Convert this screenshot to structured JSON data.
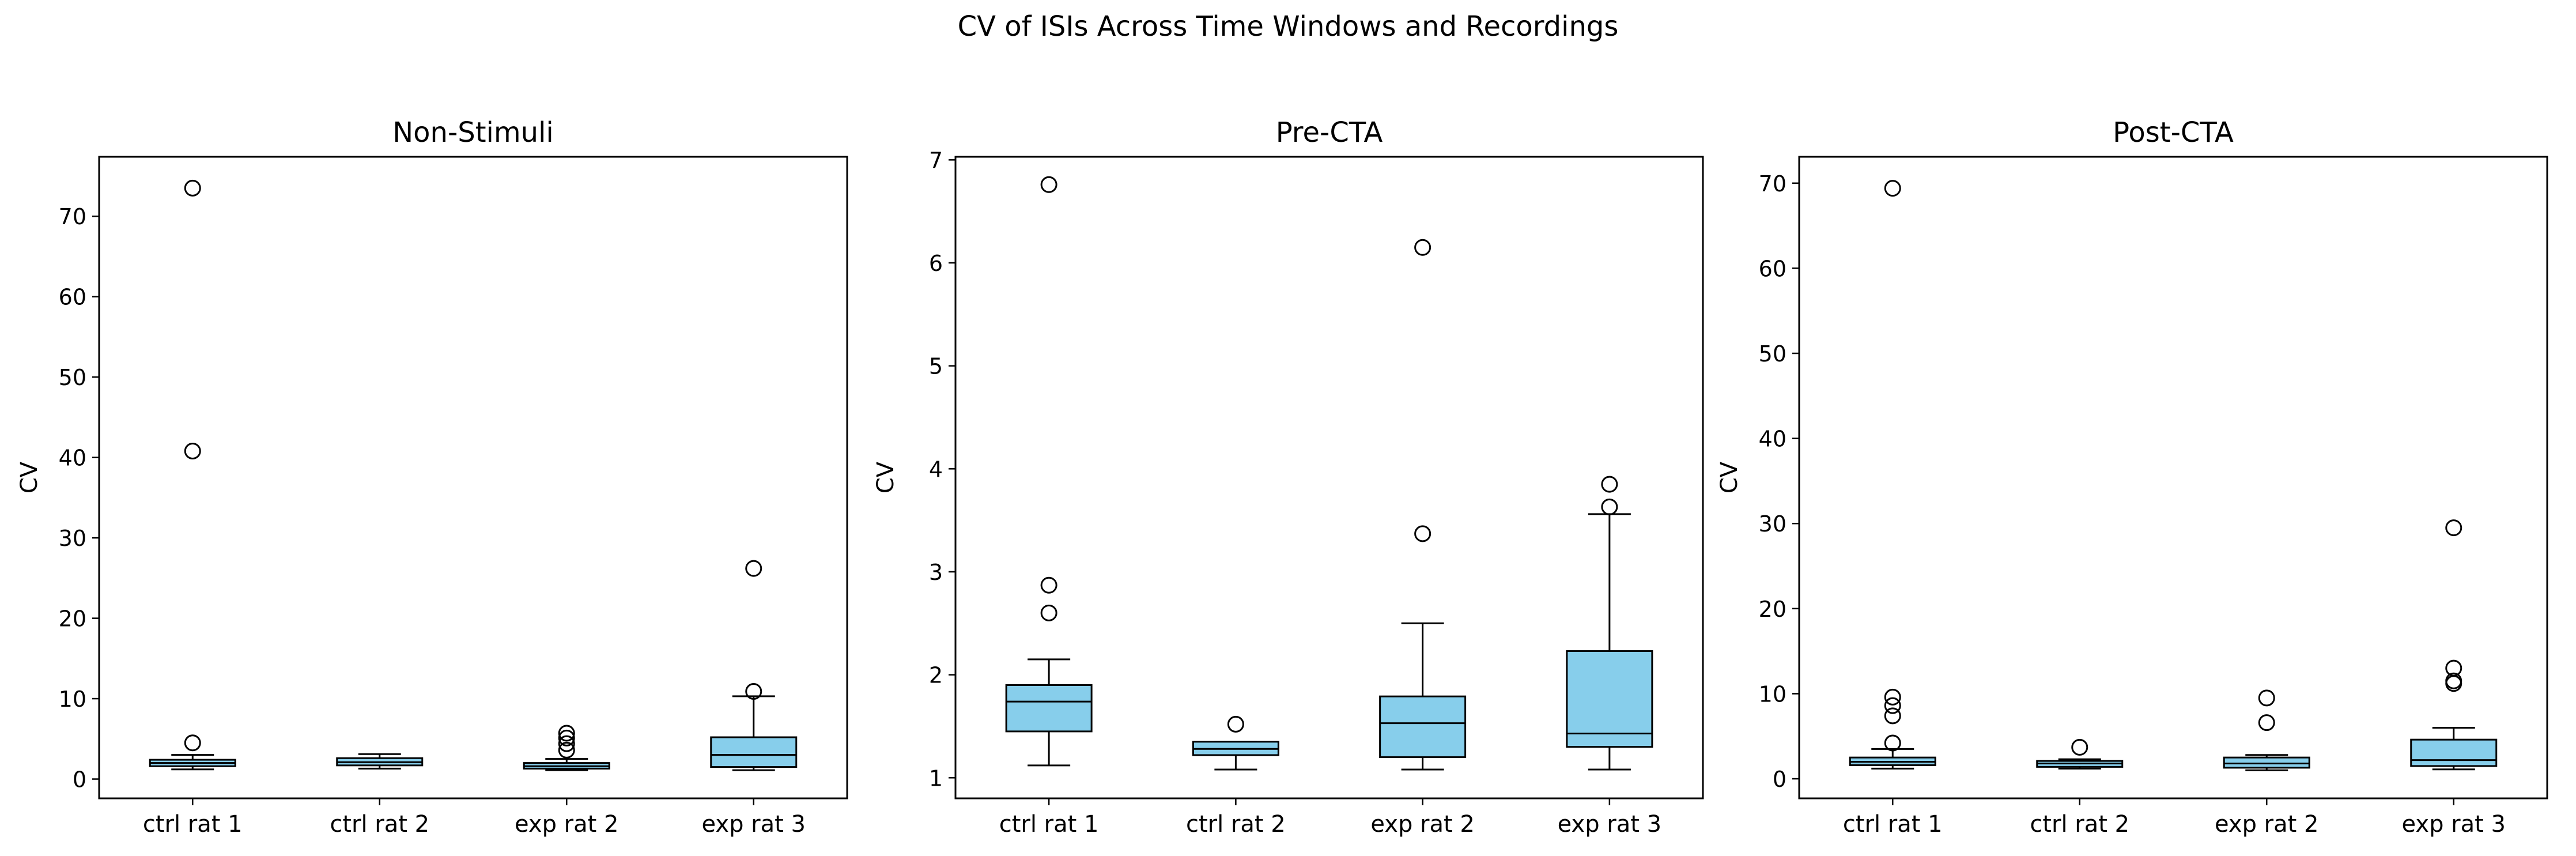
{
  "suptitle": "CV of ISIs Across Time Windows and Recordings",
  "colors": {
    "box_fill": "#87CEEB",
    "edge": "#000000",
    "background": "#ffffff"
  },
  "chart_data": [
    {
      "type": "boxplot",
      "title": "Non-Stimuli",
      "ylabel": "CV",
      "xlabel": "",
      "categories": [
        "ctrl rat 1",
        "ctrl rat 2",
        "exp rat 2",
        "exp rat 3"
      ],
      "ylim": [
        -2.4,
        77.4
      ],
      "yticks": [
        0,
        10,
        20,
        30,
        40,
        50,
        60,
        70
      ],
      "boxes": [
        {
          "label": "ctrl rat 1",
          "whisker_low": 1.2,
          "q1": 1.6,
          "median": 2.0,
          "q3": 2.4,
          "whisker_high": 3.0,
          "fliers": [
            4.5,
            40.8,
            73.5
          ]
        },
        {
          "label": "ctrl rat 2",
          "whisker_low": 1.3,
          "q1": 1.7,
          "median": 2.1,
          "q3": 2.6,
          "whisker_high": 3.1,
          "fliers": []
        },
        {
          "label": "exp rat 2",
          "whisker_low": 1.1,
          "q1": 1.3,
          "median": 1.6,
          "q3": 2.0,
          "whisker_high": 2.5,
          "fliers": [
            3.6,
            4.4,
            5.1,
            5.7
          ]
        },
        {
          "label": "exp rat 3",
          "whisker_low": 1.1,
          "q1": 1.5,
          "median": 3.0,
          "q3": 5.2,
          "whisker_high": 10.3,
          "fliers": [
            10.9,
            26.2
          ]
        }
      ],
      "grid": false,
      "legend": "none"
    },
    {
      "type": "boxplot",
      "title": "Pre-CTA",
      "ylabel": "CV",
      "xlabel": "",
      "categories": [
        "ctrl rat 1",
        "ctrl rat 2",
        "exp rat 2",
        "exp rat 3"
      ],
      "ylim": [
        0.8,
        7.03
      ],
      "yticks": [
        1,
        2,
        3,
        4,
        5,
        6,
        7
      ],
      "boxes": [
        {
          "label": "ctrl rat 1",
          "whisker_low": 1.12,
          "q1": 1.45,
          "median": 1.74,
          "q3": 1.9,
          "whisker_high": 2.15,
          "fliers": [
            2.6,
            2.87,
            6.76
          ]
        },
        {
          "label": "ctrl rat 2",
          "whisker_low": 1.08,
          "q1": 1.22,
          "median": 1.28,
          "q3": 1.35,
          "whisker_high": 1.35,
          "fliers": [
            1.52
          ]
        },
        {
          "label": "exp rat 2",
          "whisker_low": 1.08,
          "q1": 1.2,
          "median": 1.53,
          "q3": 1.79,
          "whisker_high": 2.5,
          "fliers": [
            3.37,
            6.15
          ]
        },
        {
          "label": "exp rat 3",
          "whisker_low": 1.08,
          "q1": 1.3,
          "median": 1.43,
          "q3": 2.23,
          "whisker_high": 3.56,
          "fliers": [
            3.63,
            3.85
          ]
        }
      ],
      "grid": false,
      "legend": "none"
    },
    {
      "type": "boxplot",
      "title": "Post-CTA",
      "ylabel": "CV",
      "xlabel": "",
      "categories": [
        "ctrl rat 1",
        "ctrl rat 2",
        "exp rat 2",
        "exp rat 3"
      ],
      "ylim": [
        -2.3,
        73.1
      ],
      "yticks": [
        0,
        10,
        20,
        30,
        40,
        50,
        60,
        70
      ],
      "boxes": [
        {
          "label": "ctrl rat 1",
          "whisker_low": 1.2,
          "q1": 1.6,
          "median": 2.0,
          "q3": 2.5,
          "whisker_high": 3.5,
          "fliers": [
            4.2,
            7.4,
            8.6,
            9.6,
            69.4
          ]
        },
        {
          "label": "ctrl rat 2",
          "whisker_low": 1.2,
          "q1": 1.4,
          "median": 1.8,
          "q3": 2.1,
          "whisker_high": 2.3,
          "fliers": [
            3.7
          ]
        },
        {
          "label": "exp rat 2",
          "whisker_low": 1.0,
          "q1": 1.3,
          "median": 1.8,
          "q3": 2.5,
          "whisker_high": 2.8,
          "fliers": [
            6.6,
            9.5
          ]
        },
        {
          "label": "exp rat 3",
          "whisker_low": 1.1,
          "q1": 1.5,
          "median": 2.2,
          "q3": 4.6,
          "whisker_high": 6.0,
          "fliers": [
            11.2,
            11.5,
            13.0,
            29.5
          ]
        }
      ],
      "grid": false,
      "legend": "none"
    }
  ]
}
